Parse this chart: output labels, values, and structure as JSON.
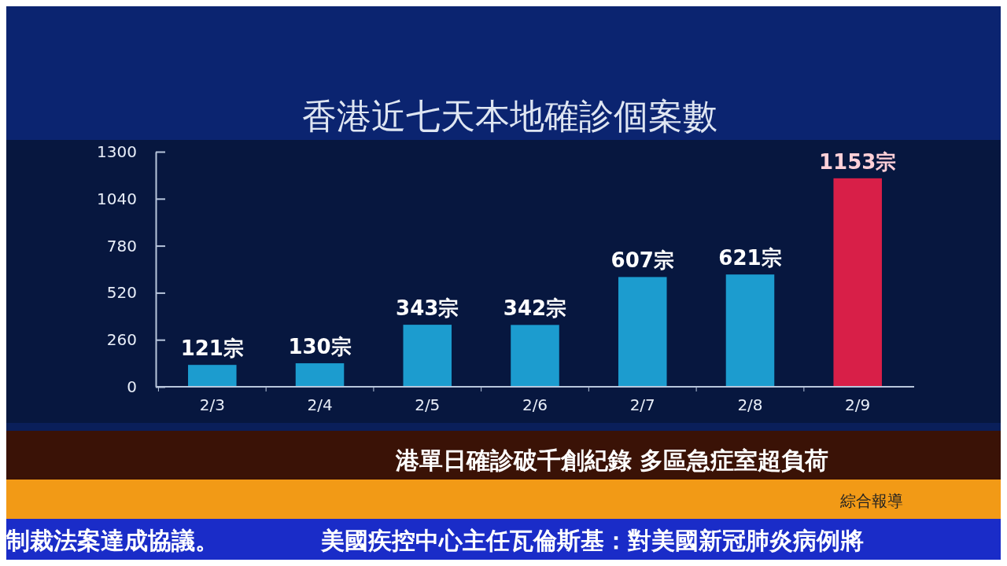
{
  "chart_data": {
    "type": "bar",
    "title": "香港近七天本地確診個案數",
    "categories": [
      "2/3",
      "2/4",
      "2/5",
      "2/6",
      "2/7",
      "2/8",
      "2/9"
    ],
    "values": [
      121,
      130,
      343,
      342,
      607,
      621,
      1153
    ],
    "value_labels": [
      "121宗",
      "130宗",
      "343宗",
      "342宗",
      "607宗",
      "621宗",
      "1153宗"
    ],
    "colors": [
      "#1c9ccf",
      "#1c9ccf",
      "#1c9ccf",
      "#1c9ccf",
      "#1c9ccf",
      "#1c9ccf",
      "#d81f48"
    ],
    "ylim": [
      0,
      1300
    ],
    "yticks": [
      0,
      260,
      520,
      780,
      1040,
      1300
    ],
    "grid": false,
    "annotations": [
      "港單日確診破千創紀錄  多區急症室超負荷",
      "綜合報導",
      "制裁法案達成協議。",
      "美國疾控中心主任瓦倫斯基：對美國新冠肺炎病例將"
    ]
  }
}
